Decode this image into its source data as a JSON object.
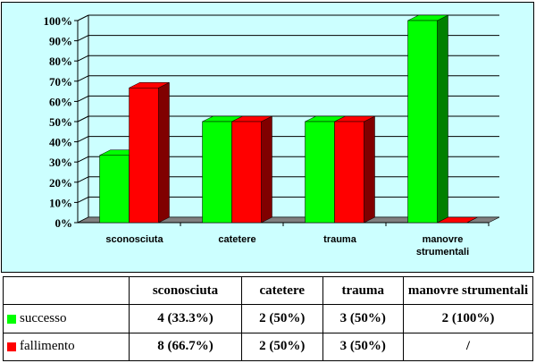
{
  "chart_data": {
    "type": "bar",
    "categories": [
      "sconosciuta",
      "catetere",
      "trauma",
      "manovre strumentali"
    ],
    "series": [
      {
        "name": "successo",
        "values": [
          33.3,
          50,
          50,
          100
        ]
      },
      {
        "name": "fallimento",
        "values": [
          66.7,
          50,
          50,
          0
        ]
      }
    ],
    "yticks": [
      "0%",
      "10%",
      "20%",
      "30%",
      "40%",
      "50%",
      "60%",
      "70%",
      "80%",
      "90%",
      "100%"
    ],
    "ylim": [
      0,
      100
    ],
    "grid": true,
    "style": "3d",
    "colors": {
      "successo": "#00ff00",
      "successo_side": "#008000",
      "fallimento": "#ff0000",
      "fallimento_side": "#800000",
      "plot_bg": "#ccffff",
      "floor": "#808080"
    }
  },
  "table": {
    "headers": [
      "sconosciuta",
      "catetere",
      "trauma",
      "manovre strumentali"
    ],
    "rows": [
      {
        "label": "successo",
        "color": "#00ff00",
        "cells": [
          "4 (33.3%)",
          "2 (50%)",
          "3 (50%)",
          "2 (100%)"
        ]
      },
      {
        "label": "fallimento",
        "color": "#ff0000",
        "cells": [
          "8 (66.7%)",
          "2 (50%)",
          "3 (50%)",
          "/"
        ]
      }
    ]
  }
}
